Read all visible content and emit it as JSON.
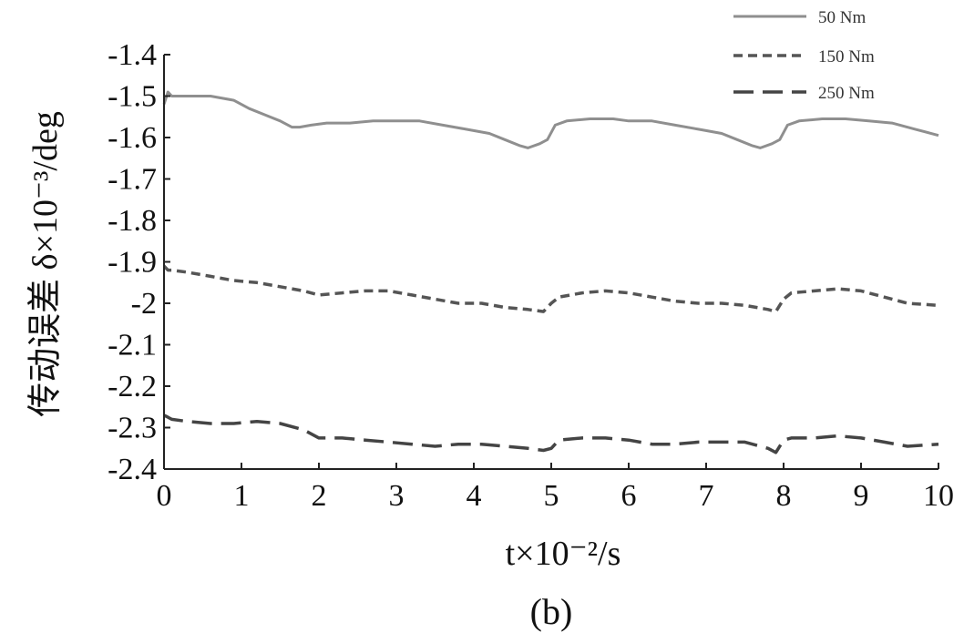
{
  "chart_data": {
    "type": "line",
    "xlabel": "t×10⁻²/s",
    "ylabel": "传动误差 δ×10⁻³/deg",
    "caption": "(b)",
    "xlim": [
      0,
      10
    ],
    "ylim": [
      -2.4,
      -1.4
    ],
    "x_ticks": [
      "0",
      "1",
      "2",
      "3",
      "4",
      "5",
      "6",
      "7",
      "8",
      "9",
      "10"
    ],
    "y_ticks": [
      "-1.4",
      "-1.5",
      "-1.6",
      "-1.7",
      "-1.8",
      "-1.9",
      "-2",
      "-2.1",
      "-2.2",
      "-2.3",
      "-2.4"
    ],
    "grid": false,
    "legend_position": "top-right",
    "series": [
      {
        "name": "50  Nm",
        "style": "solid",
        "color": "#8f8f8f",
        "x": [
          0.0,
          0.05,
          0.1,
          0.3,
          0.6,
          0.9,
          1.1,
          1.3,
          1.5,
          1.65,
          1.75,
          1.9,
          2.1,
          2.4,
          2.7,
          3.0,
          3.3,
          3.6,
          3.9,
          4.2,
          4.4,
          4.6,
          4.7,
          4.85,
          4.95,
          5.05,
          5.2,
          5.5,
          5.8,
          6.0,
          6.3,
          6.6,
          6.9,
          7.2,
          7.4,
          7.6,
          7.7,
          7.85,
          7.95,
          8.05,
          8.2,
          8.5,
          8.8,
          9.1,
          9.4,
          9.7,
          10.0
        ],
        "y": [
          -1.52,
          -1.49,
          -1.5,
          -1.5,
          -1.5,
          -1.51,
          -1.53,
          -1.545,
          -1.56,
          -1.575,
          -1.575,
          -1.57,
          -1.565,
          -1.565,
          -1.56,
          -1.56,
          -1.56,
          -1.57,
          -1.58,
          -1.59,
          -1.605,
          -1.62,
          -1.625,
          -1.615,
          -1.605,
          -1.57,
          -1.56,
          -1.555,
          -1.555,
          -1.56,
          -1.56,
          -1.57,
          -1.58,
          -1.59,
          -1.605,
          -1.62,
          -1.625,
          -1.615,
          -1.605,
          -1.57,
          -1.56,
          -1.555,
          -1.555,
          -1.56,
          -1.565,
          -1.58,
          -1.595
        ]
      },
      {
        "name": "150  Nm",
        "style": "dashed",
        "color": "#555555",
        "x": [
          0.0,
          0.05,
          0.1,
          0.3,
          0.6,
          0.9,
          1.2,
          1.5,
          1.8,
          2.0,
          2.3,
          2.6,
          2.9,
          3.2,
          3.5,
          3.8,
          4.1,
          4.4,
          4.7,
          4.9,
          5.0,
          5.1,
          5.4,
          5.7,
          6.0,
          6.3,
          6.6,
          6.9,
          7.2,
          7.5,
          7.8,
          7.9,
          8.0,
          8.1,
          8.4,
          8.7,
          9.0,
          9.3,
          9.6,
          10.0
        ],
        "y": [
          -1.91,
          -1.92,
          -1.92,
          -1.925,
          -1.935,
          -1.945,
          -1.95,
          -1.96,
          -1.97,
          -1.98,
          -1.975,
          -1.97,
          -1.97,
          -1.98,
          -1.99,
          -2.0,
          -2.0,
          -2.01,
          -2.015,
          -2.02,
          -2.0,
          -1.985,
          -1.975,
          -1.97,
          -1.975,
          -1.985,
          -1.995,
          -2.0,
          -2.0,
          -2.005,
          -2.015,
          -2.02,
          -1.99,
          -1.975,
          -1.97,
          -1.965,
          -1.97,
          -1.985,
          -2.0,
          -2.005
        ]
      },
      {
        "name": "250  Nm",
        "style": "longdash",
        "color": "#444444",
        "x": [
          0.0,
          0.05,
          0.1,
          0.3,
          0.6,
          0.9,
          1.2,
          1.5,
          1.8,
          2.0,
          2.3,
          2.6,
          2.9,
          3.2,
          3.5,
          3.8,
          4.1,
          4.4,
          4.7,
          4.9,
          5.0,
          5.1,
          5.4,
          5.7,
          6.0,
          6.3,
          6.6,
          6.9,
          7.2,
          7.5,
          7.8,
          7.9,
          8.0,
          8.1,
          8.4,
          8.7,
          9.0,
          9.3,
          9.6,
          10.0
        ],
        "y": [
          -2.27,
          -2.275,
          -2.28,
          -2.285,
          -2.29,
          -2.29,
          -2.285,
          -2.29,
          -2.305,
          -2.325,
          -2.325,
          -2.33,
          -2.335,
          -2.34,
          -2.345,
          -2.34,
          -2.34,
          -2.345,
          -2.35,
          -2.355,
          -2.35,
          -2.33,
          -2.325,
          -2.325,
          -2.33,
          -2.34,
          -2.34,
          -2.335,
          -2.335,
          -2.335,
          -2.35,
          -2.36,
          -2.33,
          -2.325,
          -2.325,
          -2.32,
          -2.325,
          -2.335,
          -2.345,
          -2.34
        ]
      }
    ]
  }
}
